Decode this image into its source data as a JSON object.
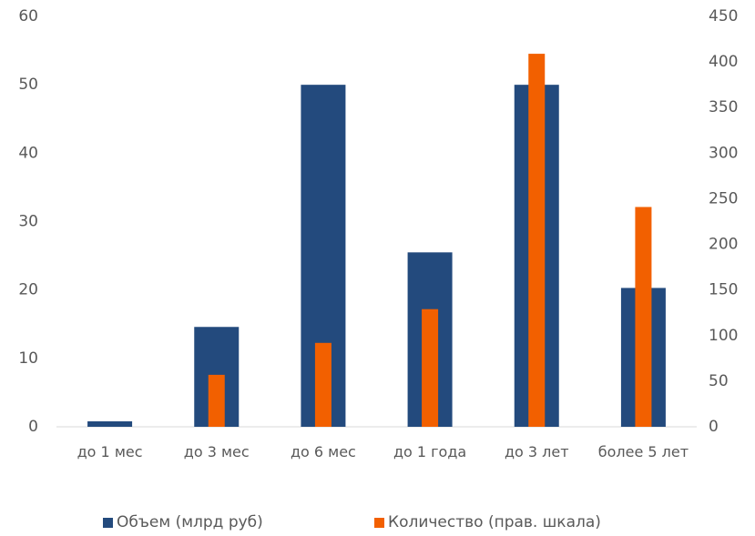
{
  "chart_data": {
    "type": "bar",
    "categories": [
      "до 1 мес",
      "до 3 мес",
      "до 6 мес",
      "до 1 года",
      "до 3 лет",
      "более 5 лет"
    ],
    "series": [
      {
        "name": "Объем (млрд руб)",
        "color": "#234a7d",
        "values": [
          0.8,
          14.6,
          50,
          25.5,
          50,
          20.3
        ]
      },
      {
        "name": "Количество (прав. шкала)",
        "color": "#f26000",
        "axis": "y2",
        "values": [
          0,
          57,
          92,
          129,
          409,
          241
        ]
      }
    ],
    "ylim": [
      0,
      60
    ],
    "yticks": [
      0,
      10,
      20,
      30,
      40,
      50,
      60
    ],
    "y2lim": [
      0,
      450
    ],
    "y2ticks": [
      0,
      50,
      100,
      150,
      200,
      250,
      300,
      350,
      400,
      450
    ],
    "legend": "bottom"
  }
}
